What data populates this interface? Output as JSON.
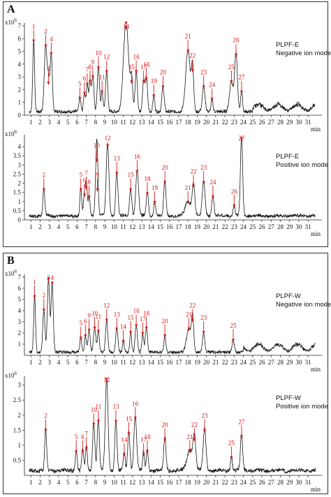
{
  "panels": [
    {
      "letter": "A"
    },
    {
      "letter": "B"
    }
  ],
  "colors": {
    "trace": "#1a1a1a",
    "highlight": "#3a5fcd",
    "arrow": "#d11a1a"
  },
  "chart_data": [
    {
      "type": "line",
      "panel": "A",
      "sample": "PLPF-E",
      "mode": "Negative ion mode",
      "scale_base": "x10",
      "scale_exp": "6",
      "xlabel": "min",
      "xlim": [
        0.3,
        32.5
      ],
      "ylim": [
        0,
        7
      ],
      "xticks": [
        1,
        2,
        3,
        4,
        5,
        6,
        7,
        8,
        9,
        10,
        11,
        12,
        13,
        14,
        15,
        16,
        17,
        18,
        19,
        20,
        21,
        22,
        23,
        24,
        25,
        26,
        27,
        28,
        29,
        30,
        31
      ],
      "yticks": [
        0,
        1,
        2,
        3,
        4,
        5,
        6,
        7
      ],
      "noise_from": 25,
      "noise_level": 0.8,
      "peaks": [
        {
          "label": "1",
          "x": 1.3,
          "y": 5.6,
          "w": 0.1
        },
        {
          "label": "2",
          "x": 2.6,
          "y": 5.2,
          "w": 0.15
        },
        {
          "label": "3",
          "x": 2.9,
          "y": 2.3,
          "w": 0.1
        },
        {
          "label": "4",
          "x": 3.2,
          "y": 4.6,
          "w": 0.12
        },
        {
          "label": "5",
          "x": 6.3,
          "y": 1.1,
          "w": 0.1
        },
        {
          "label": "6",
          "x": 6.8,
          "y": 1.5,
          "w": 0.1
        },
        {
          "label": "7",
          "x": 7.1,
          "y": 2.2,
          "w": 0.1
        },
        {
          "label": "8",
          "x": 7.4,
          "y": 2.4,
          "w": 0.1
        },
        {
          "label": "9",
          "x": 7.7,
          "y": 2.8,
          "w": 0.12
        },
        {
          "label": "10",
          "x": 8.3,
          "y": 3.5,
          "w": 0.12
        },
        {
          "label": "11",
          "x": 8.7,
          "y": 1.6,
          "w": 0.1
        },
        {
          "label": "12",
          "x": 9.2,
          "y": 3.2,
          "w": 0.12
        },
        {
          "label": "14",
          "x": 11.3,
          "y": 7.0,
          "w": 0.28
        },
        {
          "label": "15",
          "x": 11.9,
          "y": 2.4,
          "w": 0.12
        },
        {
          "label": "16",
          "x": 12.4,
          "y": 3.2,
          "w": 0.12
        },
        {
          "label": "17",
          "x": 13.2,
          "y": 2.4,
          "w": 0.12
        },
        {
          "label": "18",
          "x": 13.5,
          "y": 2.6,
          "w": 0.12
        },
        {
          "label": "19",
          "x": 14.3,
          "y": 1.3,
          "w": 0.1
        },
        {
          "label": "20",
          "x": 15.3,
          "y": 2.0,
          "w": 0.12
        },
        {
          "label": "21",
          "x": 18.0,
          "y": 4.8,
          "w": 0.25
        },
        {
          "label": "22",
          "x": 18.5,
          "y": 3.3,
          "w": 0.12
        },
        {
          "label": "23",
          "x": 19.7,
          "y": 2.0,
          "w": 0.15
        },
        {
          "label": "24",
          "x": 20.6,
          "y": 1.0,
          "w": 0.1
        },
        {
          "label": "25",
          "x": 22.7,
          "y": 2.4,
          "w": 0.2
        },
        {
          "label": "26",
          "x": 23.2,
          "y": 4.5,
          "w": 0.15
        },
        {
          "label": "27",
          "x": 23.8,
          "y": 1.6,
          "w": 0.1
        }
      ]
    },
    {
      "type": "line",
      "panel": "A",
      "sample": "PLPF-E",
      "mode": "Positive ion mode",
      "scale_base": "x10",
      "scale_exp": "6",
      "xlabel": "min",
      "xlim": [
        0.3,
        32.5
      ],
      "ylim": [
        0,
        4.5
      ],
      "xticks": [
        1,
        2,
        3,
        4,
        5,
        6,
        7,
        8,
        9,
        10,
        11,
        12,
        13,
        14,
        15,
        16,
        17,
        18,
        19,
        20,
        21,
        22,
        23,
        24,
        25,
        26,
        27,
        28,
        29,
        30,
        31
      ],
      "yticks": [
        0,
        0.5,
        1.0,
        1.5,
        2.0,
        2.5,
        3.0,
        3.5,
        4.0
      ],
      "noise_from": 0,
      "noise_level": 0.1,
      "peaks": [
        {
          "label": "2",
          "x": 2.4,
          "y": 1.5,
          "w": 0.1
        },
        {
          "label": "5",
          "x": 6.4,
          "y": 1.5,
          "w": 0.1
        },
        {
          "label": "6",
          "x": 6.8,
          "y": 1.2,
          "w": 0.1
        },
        {
          "label": "7",
          "x": 7.0,
          "y": 1.6,
          "w": 0.1
        },
        {
          "label": "8",
          "x": 7.3,
          "y": 1.1,
          "w": 0.1
        },
        {
          "label": "9",
          "x": 8.2,
          "y": 1.5,
          "w": 0.1
        },
        {
          "label": "10",
          "x": 8.1,
          "y": 3.1,
          "w": 0.12
        },
        {
          "label": "12",
          "x": 9.3,
          "y": 3.9,
          "w": 0.15
        },
        {
          "label": "13",
          "x": 10.3,
          "y": 2.4,
          "w": 0.12
        },
        {
          "label": "15",
          "x": 11.8,
          "y": 1.5,
          "w": 0.12
        },
        {
          "label": "16",
          "x": 12.5,
          "y": 2.5,
          "w": 0.15
        },
        {
          "label": "18",
          "x": 13.6,
          "y": 1.3,
          "w": 0.12
        },
        {
          "label": "19",
          "x": 14.4,
          "y": 0.8,
          "w": 0.1
        },
        {
          "label": "20",
          "x": 15.5,
          "y": 1.9,
          "w": 0.12
        },
        {
          "label": "21",
          "x": 18.0,
          "y": 0.8,
          "w": 0.3
        },
        {
          "label": "22",
          "x": 18.6,
          "y": 1.7,
          "w": 0.15
        },
        {
          "label": "23",
          "x": 19.7,
          "y": 1.9,
          "w": 0.15
        },
        {
          "label": "24",
          "x": 20.7,
          "y": 1.1,
          "w": 0.12
        },
        {
          "label": "26",
          "x": 23.0,
          "y": 0.6,
          "w": 0.1
        },
        {
          "label": "27",
          "x": 23.8,
          "y": 4.3,
          "w": 0.12
        }
      ]
    },
    {
      "type": "line",
      "panel": "B",
      "sample": "PLPF-W",
      "mode": "Negative ion mode",
      "scale_base": "x10",
      "scale_exp": "6",
      "xlabel": "min",
      "xlim": [
        0.3,
        32.5
      ],
      "ylim": [
        0,
        7
      ],
      "xticks": [
        1,
        2,
        3,
        4,
        5,
        6,
        7,
        8,
        9,
        10,
        11,
        12,
        13,
        14,
        15,
        16,
        17,
        18,
        19,
        20,
        21,
        22,
        23,
        24,
        25,
        26,
        27,
        28,
        29,
        30,
        31
      ],
      "yticks": [
        1,
        2,
        3,
        4,
        5,
        6,
        7
      ],
      "noise_from": 24,
      "noise_level": 1.0,
      "peaks": [
        {
          "label": "1",
          "x": 1.4,
          "y": 5.0,
          "w": 0.1
        },
        {
          "label": "2",
          "x": 2.4,
          "y": 3.8,
          "w": 0.12
        },
        {
          "label": "3",
          "x": 2.9,
          "y": 6.6,
          "w": 0.12
        },
        {
          "label": "4",
          "x": 3.3,
          "y": 6.2,
          "w": 0.12
        },
        {
          "label": "5",
          "x": 6.4,
          "y": 1.3,
          "w": 0.1
        },
        {
          "label": "6",
          "x": 6.9,
          "y": 1.5,
          "w": 0.1
        },
        {
          "label": "9",
          "x": 7.3,
          "y": 2.0,
          "w": 0.12
        },
        {
          "label": "10",
          "x": 7.9,
          "y": 2.2,
          "w": 0.12
        },
        {
          "label": "11",
          "x": 8.3,
          "y": 1.9,
          "w": 0.1
        },
        {
          "label": "12",
          "x": 9.2,
          "y": 2.9,
          "w": 0.12
        },
        {
          "label": "13",
          "x": 10.3,
          "y": 2.1,
          "w": 0.12
        },
        {
          "label": "14",
          "x": 11.0,
          "y": 1.0,
          "w": 0.1
        },
        {
          "label": "15",
          "x": 11.8,
          "y": 1.8,
          "w": 0.1
        },
        {
          "label": "16",
          "x": 12.4,
          "y": 2.4,
          "w": 0.12
        },
        {
          "label": "17",
          "x": 13.1,
          "y": 1.7,
          "w": 0.1
        },
        {
          "label": "18",
          "x": 13.5,
          "y": 2.2,
          "w": 0.12
        },
        {
          "label": "20",
          "x": 15.5,
          "y": 1.5,
          "w": 0.1
        },
        {
          "label": "21",
          "x": 18.1,
          "y": 2.1,
          "w": 0.25
        },
        {
          "label": "22",
          "x": 18.5,
          "y": 2.9,
          "w": 0.12
        },
        {
          "label": "23",
          "x": 19.7,
          "y": 1.8,
          "w": 0.12
        },
        {
          "label": "25",
          "x": 22.9,
          "y": 1.1,
          "w": 0.12
        }
      ]
    },
    {
      "type": "line",
      "panel": "B",
      "sample": "PLPF-W",
      "mode": "Positive ion mode",
      "scale_base": "x10",
      "scale_exp": "6",
      "xlabel": "min",
      "xlim": [
        0.3,
        32.5
      ],
      "ylim": [
        0,
        3.2
      ],
      "xticks": [
        1,
        2,
        3,
        4,
        5,
        6,
        7,
        8,
        9,
        10,
        11,
        12,
        13,
        14,
        15,
        16,
        17,
        18,
        19,
        20,
        21,
        22,
        23,
        24,
        25,
        26,
        27,
        28,
        29,
        30,
        31
      ],
      "yticks": [
        0.5,
        1.0,
        1.5,
        2.0,
        2.5,
        3.0
      ],
      "noise_from": 0,
      "noise_level": 0.08,
      "peaks": [
        {
          "label": "2",
          "x": 2.6,
          "y": 1.4,
          "w": 0.1
        },
        {
          "label": "5",
          "x": 5.9,
          "y": 0.7,
          "w": 0.1
        },
        {
          "label": "6",
          "x": 6.6,
          "y": 0.7,
          "w": 0.1
        },
        {
          "label": "7",
          "x": 7.0,
          "y": 0.8,
          "w": 0.1
        },
        {
          "label": "10",
          "x": 7.8,
          "y": 1.6,
          "w": 0.12
        },
        {
          "label": "11",
          "x": 8.3,
          "y": 1.7,
          "w": 0.12
        },
        {
          "label": "12",
          "x": 9.2,
          "y": 3.1,
          "w": 0.15
        },
        {
          "label": "13",
          "x": 10.2,
          "y": 1.7,
          "w": 0.12
        },
        {
          "label": "14",
          "x": 11.1,
          "y": 0.6,
          "w": 0.1
        },
        {
          "label": "15",
          "x": 11.6,
          "y": 1.3,
          "w": 0.12
        },
        {
          "label": "16",
          "x": 12.3,
          "y": 1.8,
          "w": 0.15
        },
        {
          "label": "17",
          "x": 13.2,
          "y": 0.6,
          "w": 0.1
        },
        {
          "label": "18",
          "x": 13.6,
          "y": 0.7,
          "w": 0.1
        },
        {
          "label": "20",
          "x": 15.5,
          "y": 1.1,
          "w": 0.12
        },
        {
          "label": "21",
          "x": 18.2,
          "y": 0.7,
          "w": 0.3
        },
        {
          "label": "22",
          "x": 18.7,
          "y": 1.1,
          "w": 0.15
        },
        {
          "label": "23",
          "x": 19.8,
          "y": 1.4,
          "w": 0.15
        },
        {
          "label": "25",
          "x": 22.7,
          "y": 0.5,
          "w": 0.1
        },
        {
          "label": "27",
          "x": 23.8,
          "y": 1.2,
          "w": 0.12
        }
      ]
    }
  ]
}
